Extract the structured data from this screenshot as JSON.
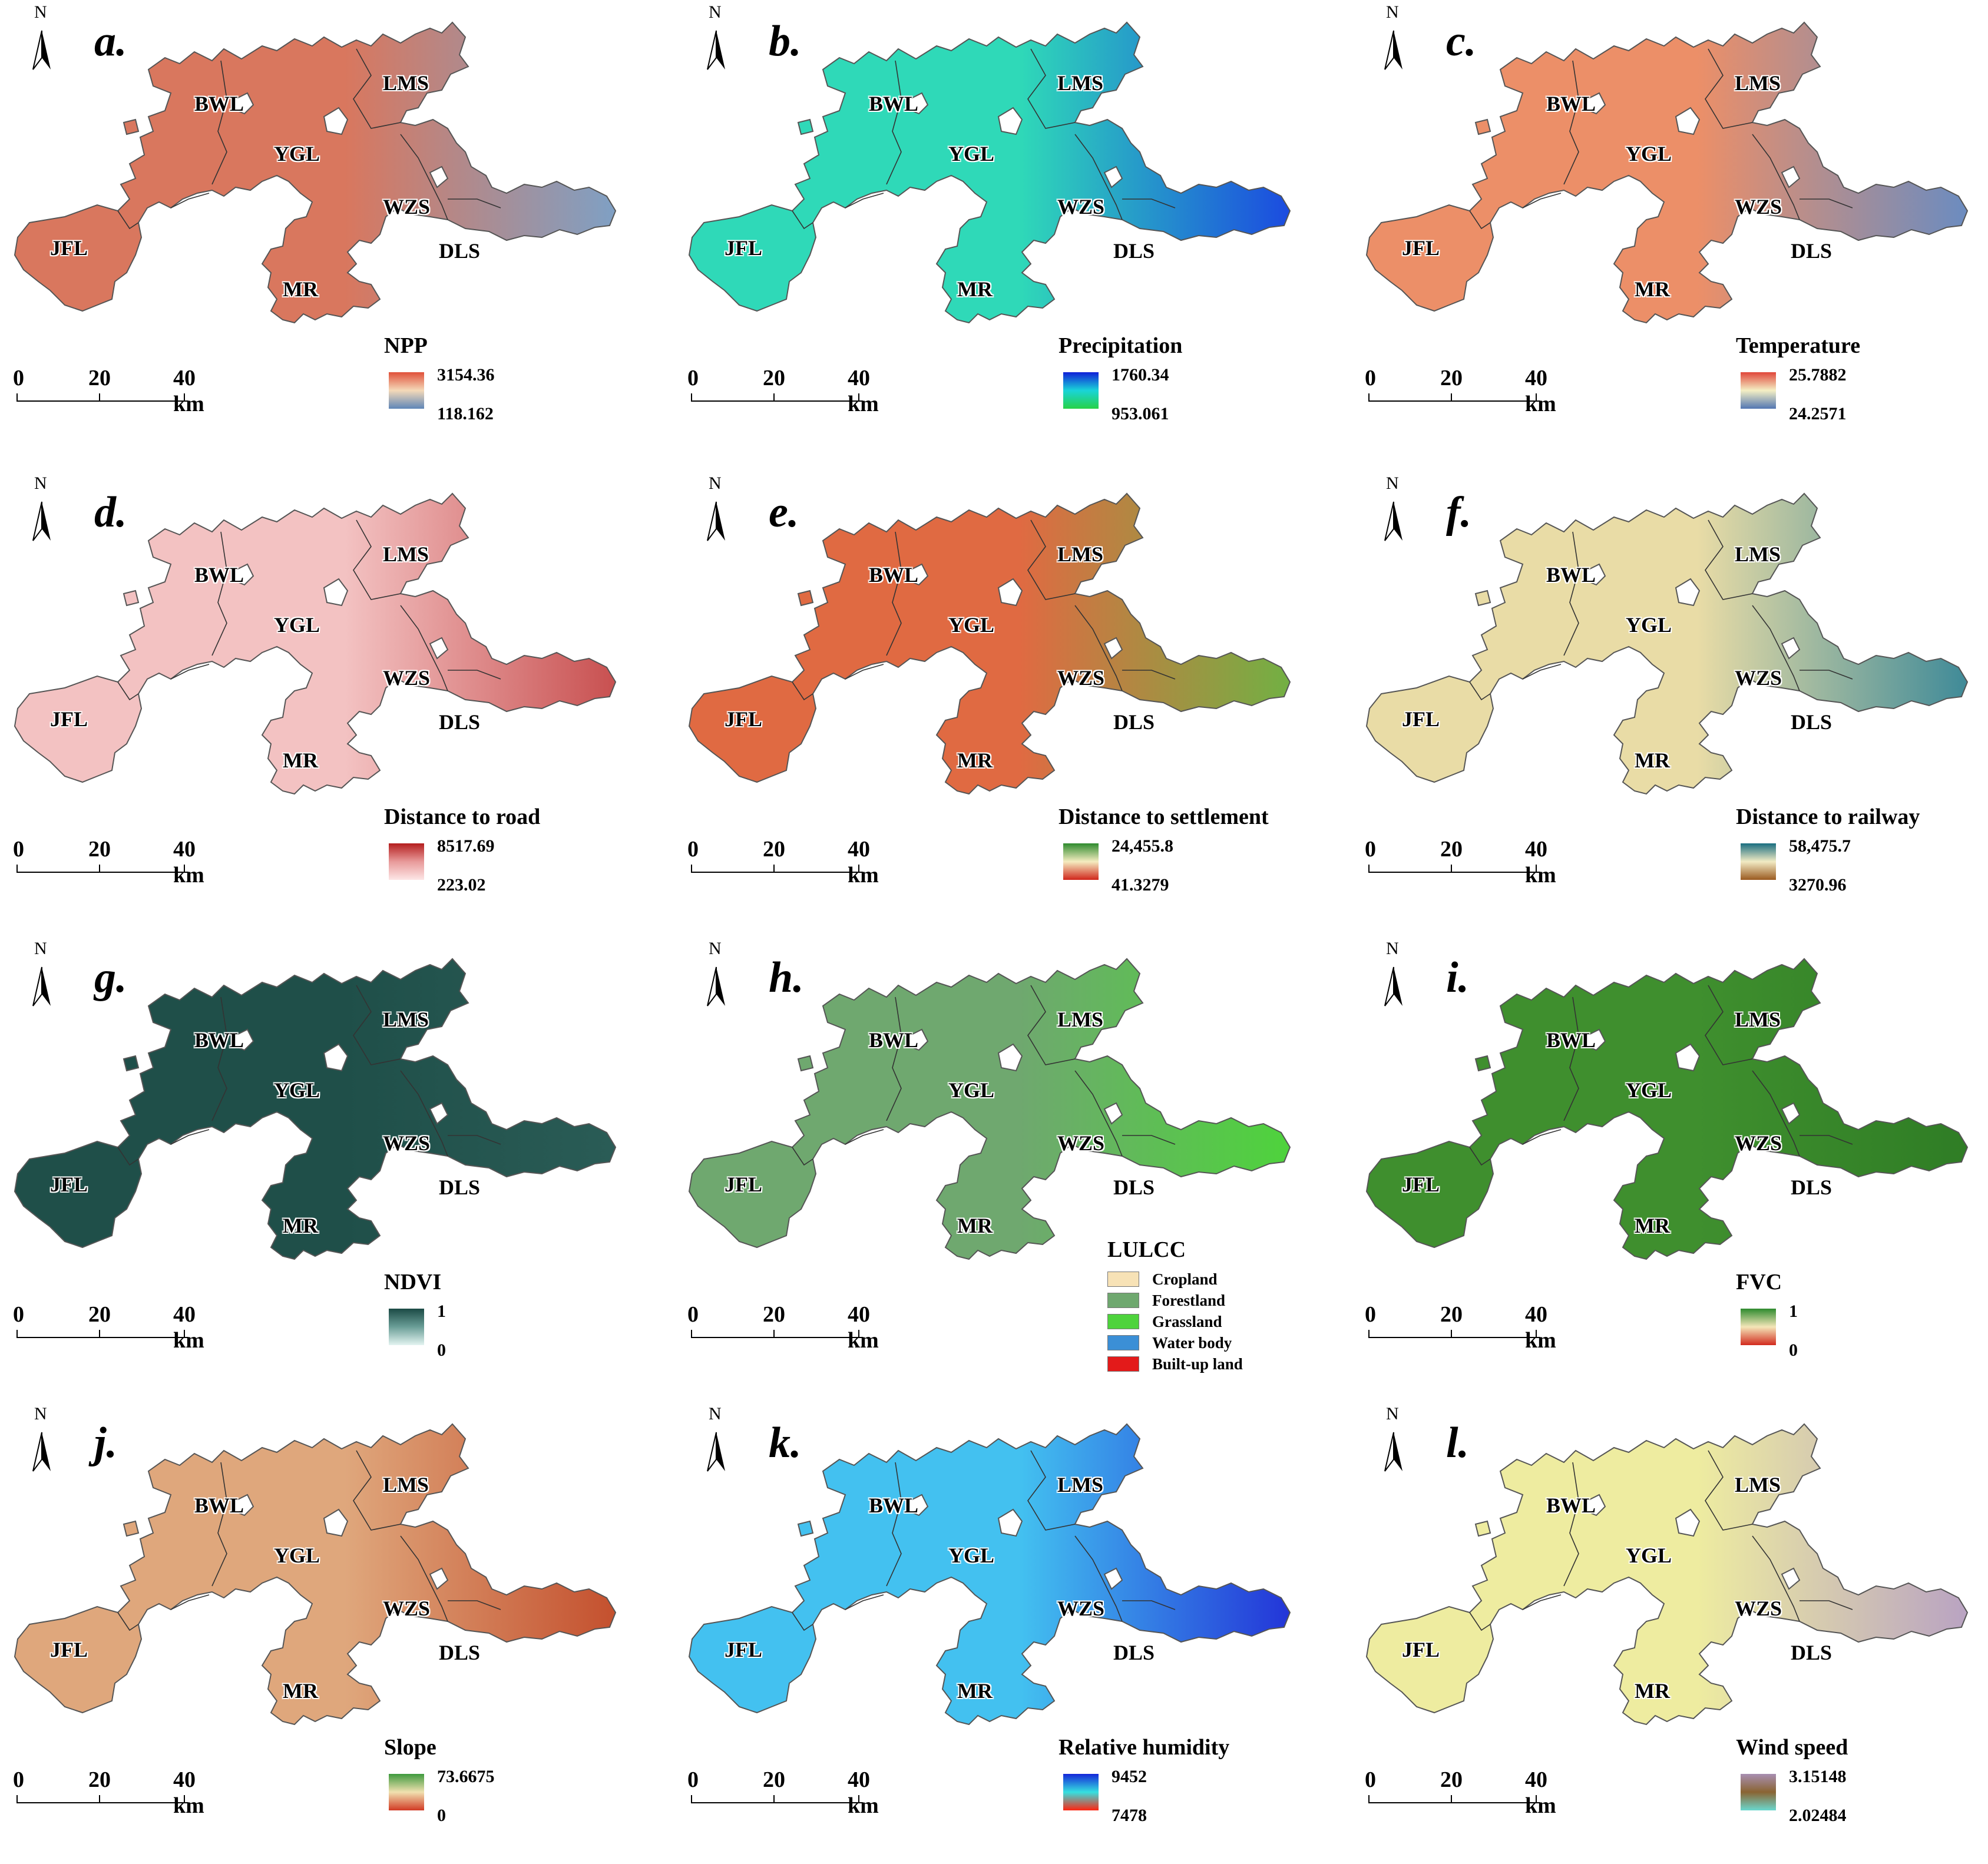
{
  "region_labels": [
    "BWL",
    "YGL",
    "LMS",
    "WZS",
    "DLS",
    "JFL",
    "MR"
  ],
  "scale": {
    "zero": "0",
    "mid": "20",
    "end": "40 km"
  },
  "north": "N",
  "panels": [
    {
      "letter": "a.",
      "title": "NPP",
      "max": "3154.36",
      "min": "118.162",
      "c_top": "#e0503a",
      "c_mid": "#f4d9b8",
      "c_bot": "#5f86b8",
      "fill": "#d9775e",
      "fill2": "#7fa0c4"
    },
    {
      "letter": "b.",
      "title": "Precipitation",
      "max": "1760.34",
      "min": "953.061",
      "c_top": "#1020d8",
      "c_mid": "#19d4d8",
      "c_bot": "#27d247",
      "fill": "#2fd9b8",
      "fill2": "#1b4be0"
    },
    {
      "letter": "c.",
      "title": "Temperature",
      "max": "25.7882",
      "min": "24.2571",
      "c_top": "#e0463a",
      "c_mid": "#f4efc4",
      "c_bot": "#5276b2",
      "fill": "#ec8f68",
      "fill2": "#6b8cc0"
    },
    {
      "letter": "d.",
      "title": "Distance to road",
      "max": "8517.69",
      "min": "223.02",
      "c_top": "#b41e1e",
      "c_mid": "#e89a9a",
      "c_bot": "#fde6e6",
      "fill": "#f3c2c2",
      "fill2": "#c85050"
    },
    {
      "letter": "e.",
      "title": "Distance to settlement",
      "max": "24,455.8",
      "min": "41.3279",
      "c_top": "#2e8b2e",
      "c_mid": "#f5ecc0",
      "c_bot": "#d0261c",
      "fill": "#e06a42",
      "fill2": "#72b043"
    },
    {
      "letter": "f.",
      "title": "Distance to railway",
      "max": "58,475.7",
      "min": "3270.96",
      "c_top": "#1a6e80",
      "c_mid": "#f2ebc4",
      "c_bot": "#9a5a20",
      "fill": "#e9dca6",
      "fill2": "#3f8a98"
    },
    {
      "letter": "g.",
      "title": "NDVI",
      "max": "1",
      "min": "0",
      "c_top": "#1b4a45",
      "c_mid": "#6a9e97",
      "c_bot": "#e4f4f1",
      "fill": "#1f4f49",
      "fill2": "#2a5c56"
    },
    {
      "letter": "h.",
      "title": "",
      "max": "",
      "min": "",
      "c_top": "#70a870",
      "c_mid": "#70a870",
      "c_bot": "#70a870",
      "fill": "#6fa86f",
      "fill2": "#4ed33c"
    },
    {
      "letter": "i.",
      "title": "FVC",
      "max": "1",
      "min": "0",
      "c_top": "#2e8b2e",
      "c_mid": "#f4e6b8",
      "c_bot": "#d22a1e",
      "fill": "#3f8f2e",
      "fill2": "#2f7d25"
    },
    {
      "letter": "j.",
      "title": "Slope",
      "max": "73.6675",
      "min": "0",
      "c_top": "#3e9a3e",
      "c_mid": "#f1e1b0",
      "c_bot": "#d13a24",
      "fill": "#dfa77c",
      "fill2": "#c4502e"
    },
    {
      "letter": "k.",
      "title": "Relative humidity",
      "max": "9452",
      "min": "7478",
      "c_top": "#1326d9",
      "c_mid": "#35e0e0",
      "c_bot": "#ff2410",
      "fill": "#43c1f0",
      "fill2": "#2335d8"
    },
    {
      "letter": "l.",
      "title": "Wind speed",
      "max": "3.15148",
      "min": "2.02484",
      "c_top": "#a88fb2",
      "c_mid": "#8a6432",
      "c_bot": "#6ad8cf",
      "fill": "#eeeca0",
      "fill2": "#b9a3c2"
    }
  ],
  "lulcc": {
    "title": "LULCC",
    "items": [
      {
        "label": "Cropland",
        "color": "#f7e2b6"
      },
      {
        "label": "Forestland",
        "color": "#6fa86f"
      },
      {
        "label": "Grassland",
        "color": "#4ed33c"
      },
      {
        "label": "Water body",
        "color": "#3b8fd6"
      },
      {
        "label": "Built-up land",
        "color": "#e31a1a"
      }
    ]
  }
}
